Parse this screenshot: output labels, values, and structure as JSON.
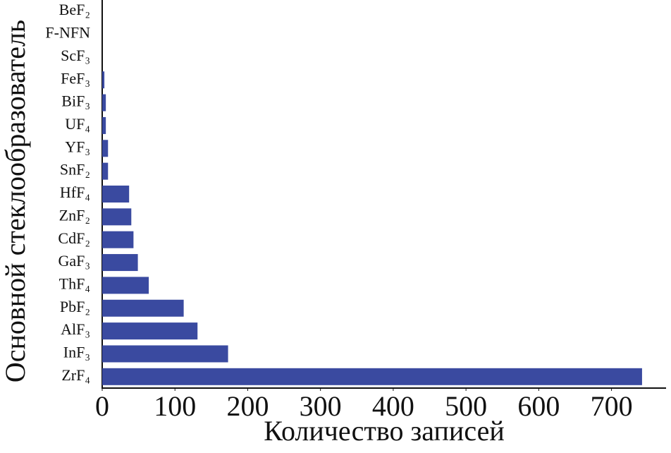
{
  "chart_data": {
    "type": "barh",
    "xlabel": "Количество записей",
    "ylabel": "Основной стеклообразователь",
    "categories": [
      "BeF₂",
      "F-NFN",
      "ScF₃",
      "FeF₃",
      "BiF₃",
      "UF₄",
      "YF₃",
      "SnF₂",
      "HfF₄",
      "ZnF₂",
      "CdF₂",
      "GaF₃",
      "ThF₄",
      "PbF₂",
      "AlF₃",
      "InF₃",
      "ZrF₄"
    ],
    "values": [
      0,
      0,
      0,
      3,
      5,
      5,
      8,
      8,
      37,
      40,
      43,
      49,
      64,
      112,
      131,
      173,
      742
    ],
    "color": "#3a4aa0",
    "xlim": [
      0,
      775
    ],
    "xticks": [
      0,
      100,
      200,
      300,
      400,
      500,
      600,
      700
    ]
  }
}
